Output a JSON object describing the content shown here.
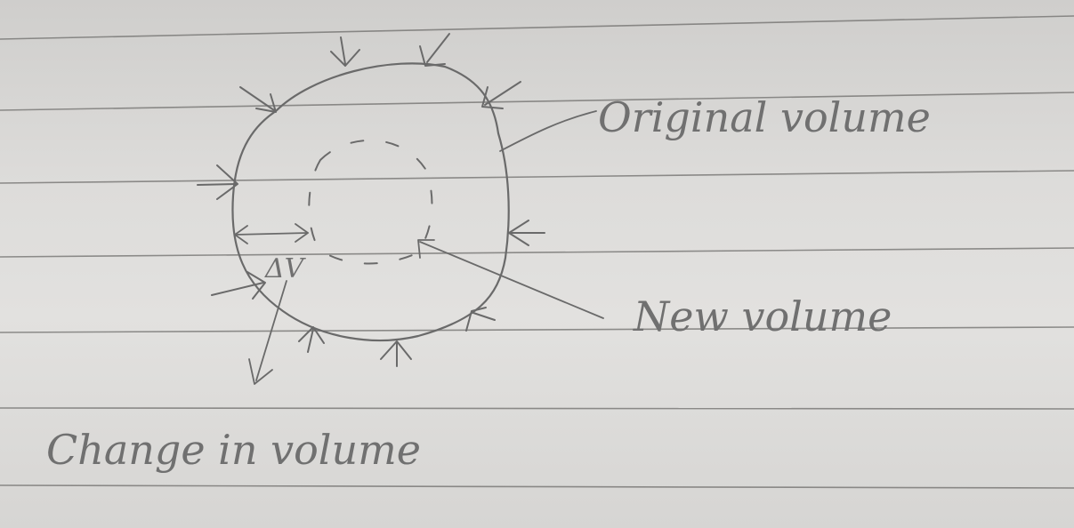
{
  "labels": {
    "original": "Original volume",
    "new": "New volume",
    "change": "Change in volume",
    "delta": "ΔV"
  },
  "colors": {
    "paper": "#dddcda",
    "pencil": "#6a6a6a",
    "rule": "#6f6e6c"
  }
}
